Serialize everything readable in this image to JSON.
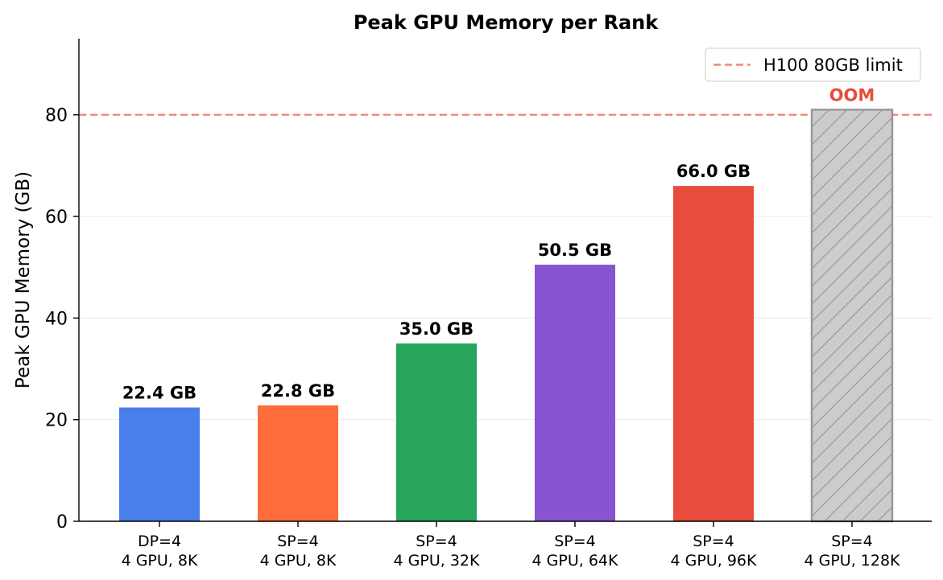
{
  "chart_data": {
    "type": "bar",
    "title": "Peak GPU Memory per Rank",
    "xlabel": "",
    "ylabel": "Peak GPU Memory (GB)",
    "ylim": [
      0,
      95
    ],
    "yticks": [
      0,
      20,
      40,
      60,
      80
    ],
    "grid": "horizontal",
    "legend_position": "top-right",
    "categories": [
      [
        "DP=4",
        "4 GPU, 8K"
      ],
      [
        "SP=4",
        "4 GPU, 8K"
      ],
      [
        "SP=4",
        "4 GPU, 32K"
      ],
      [
        "SP=4",
        "4 GPU, 64K"
      ],
      [
        "SP=4",
        "4 GPU, 96K"
      ],
      [
        "SP=4",
        "4 GPU, 128K"
      ]
    ],
    "values": [
      22.4,
      22.8,
      35.0,
      50.5,
      66.0,
      81.0
    ],
    "data_labels": [
      "22.4 GB",
      "22.8 GB",
      "35.0 GB",
      "50.5 GB",
      "66.0 GB",
      "OOM"
    ],
    "colors": [
      "#4a7eeb",
      "#ff6d3a",
      "#27a55c",
      "#8854d0",
      "#e74c3c",
      "#cccccc"
    ],
    "label_colors": [
      "#000000",
      "#000000",
      "#000000",
      "#000000",
      "#000000",
      "#e74c3c"
    ],
    "oom_flags": [
      false,
      false,
      false,
      false,
      false,
      true
    ],
    "oom_bar_edge_color": "#999999",
    "reference_line": {
      "value": 80,
      "label": "H100 80GB limit",
      "color": "#f1887a",
      "style": "dashed"
    }
  }
}
